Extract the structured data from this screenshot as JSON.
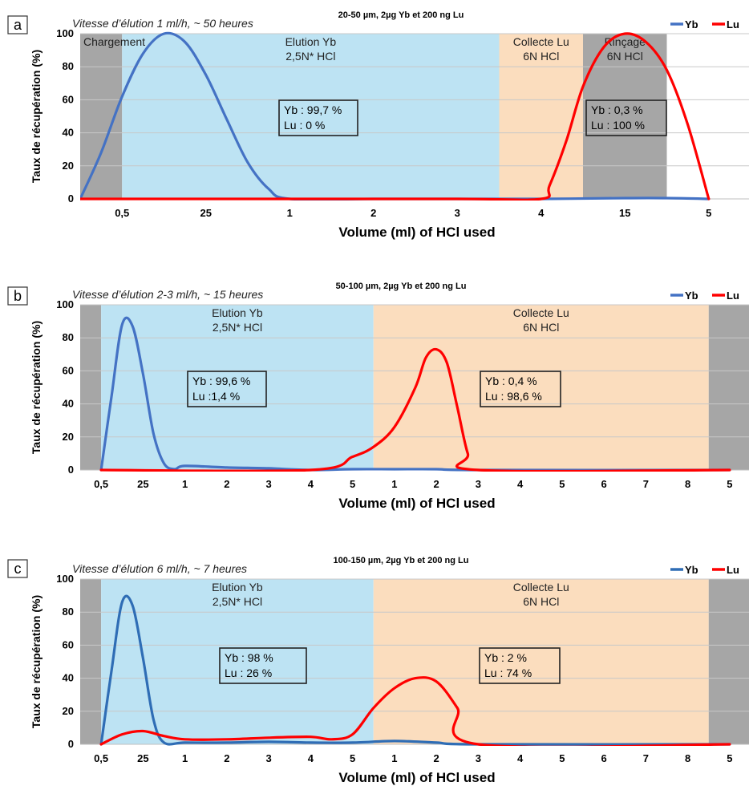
{
  "colors": {
    "yb": "#4472C4",
    "yb_dark": "#2F6DB5",
    "lu": "#FF0000",
    "gray": "#A6A6A6",
    "blue_region": "#BDE3F3",
    "peach_region": "#FBDDBE",
    "grid": "#C8C8C8"
  },
  "chart_data": [
    {
      "type": "line",
      "panel_label": "a",
      "title": "20-50 µm, 2µg Yb et 200 ng Lu",
      "subtitle": "Vitesse d’élution 1 ml/h, ~ 50 heures",
      "xlabel": "Volume (ml) of HCl used",
      "ylabel": "Taux de récupération (%)",
      "ylim": [
        0,
        100
      ],
      "yticks": [
        0,
        20,
        40,
        60,
        80,
        100
      ],
      "grid": true,
      "legend_position": "top-right",
      "categories": [
        "0,5",
        "25",
        "1",
        "2",
        "3",
        "4",
        "15",
        "5"
      ],
      "regions": [
        {
          "kind": "gray",
          "from": -0.5,
          "to": 0.0,
          "labels": [
            "Chargement"
          ]
        },
        {
          "kind": "blue",
          "from": 0.0,
          "to": 4.5,
          "labels": [
            "Elution Yb",
            "2,5N* HCl"
          ]
        },
        {
          "kind": "peach",
          "from": 4.5,
          "to": 5.5,
          "labels": [
            "Collecte Lu",
            "6N HCl"
          ]
        },
        {
          "kind": "gray",
          "from": 5.5,
          "to": 6.5,
          "labels": [
            "Rinçage",
            "6N HCl"
          ]
        }
      ],
      "series": [
        {
          "name": "Yb",
          "points": [
            [
              -0.5,
              0
            ],
            [
              -0.25,
              28
            ],
            [
              0,
              62
            ],
            [
              0.25,
              88
            ],
            [
              0.5,
              100
            ],
            [
              0.75,
              95
            ],
            [
              1,
              75
            ],
            [
              1.25,
              48
            ],
            [
              1.5,
              22
            ],
            [
              1.75,
              6
            ],
            [
              2,
              0
            ],
            [
              3,
              0
            ],
            [
              4,
              0
            ],
            [
              5,
              0
            ],
            [
              6,
              0.5
            ],
            [
              6.5,
              0.5
            ],
            [
              7,
              0
            ]
          ]
        },
        {
          "name": "Lu",
          "points": [
            [
              -0.5,
              0
            ],
            [
              1,
              0
            ],
            [
              4,
              0
            ],
            [
              5,
              0
            ],
            [
              5.1,
              8
            ],
            [
              5.3,
              35
            ],
            [
              5.5,
              68
            ],
            [
              5.75,
              92
            ],
            [
              6,
              100
            ],
            [
              6.25,
              95
            ],
            [
              6.5,
              78
            ],
            [
              6.75,
              45
            ],
            [
              7,
              0
            ]
          ]
        }
      ],
      "annotations": [
        {
          "lines": [
            "Yb : 99,7 %",
            "Lu : 0 %"
          ]
        },
        {
          "lines": [
            "Yb : 0,3 %",
            "Lu : 100 %"
          ]
        }
      ]
    },
    {
      "type": "line",
      "panel_label": "b",
      "title": "50-100 µm, 2µg Yb et 200 ng Lu",
      "subtitle": "Vitesse d’élution 2-3 ml/h, ~ 15 heures",
      "xlabel": "Volume (ml) of HCl used",
      "ylabel": "Taux de récupération (%)",
      "ylim": [
        0,
        100
      ],
      "yticks": [
        0,
        20,
        40,
        60,
        80,
        100
      ],
      "grid": true,
      "legend_position": "top-right",
      "categories": [
        "0,5",
        "25",
        "1",
        "2",
        "3",
        "4",
        "5",
        "1",
        "2",
        "3",
        "4",
        "5",
        "6",
        "7",
        "8",
        "5"
      ],
      "regions": [
        {
          "kind": "gray",
          "from": -0.5,
          "to": 0.0,
          "labels": []
        },
        {
          "kind": "blue",
          "from": 0.0,
          "to": 6.5,
          "labels": [
            "Elution Yb",
            "2,5N* HCl"
          ]
        },
        {
          "kind": "peach",
          "from": 6.5,
          "to": 14.5,
          "labels": [
            "Collecte Lu",
            "6N HCl"
          ]
        },
        {
          "kind": "gray",
          "from": 14.5,
          "to": 15.5,
          "labels": []
        }
      ],
      "series": [
        {
          "name": "Yb",
          "points": [
            [
              0,
              0
            ],
            [
              0.25,
              45
            ],
            [
              0.5,
              88
            ],
            [
              0.75,
              87
            ],
            [
              1,
              58
            ],
            [
              1.25,
              22
            ],
            [
              1.5,
              4
            ],
            [
              1.75,
              0.5
            ],
            [
              2,
              2.5
            ],
            [
              3,
              1.5
            ],
            [
              4,
              1
            ],
            [
              5,
              0
            ],
            [
              6,
              0.5
            ],
            [
              7,
              0.5
            ],
            [
              8,
              0.5
            ],
            [
              9,
              0
            ],
            [
              15,
              0
            ]
          ]
        },
        {
          "name": "Lu",
          "points": [
            [
              0,
              0
            ],
            [
              5,
              0
            ],
            [
              6,
              8
            ],
            [
              6.5,
              14
            ],
            [
              7,
              26
            ],
            [
              7.5,
              50
            ],
            [
              7.75,
              68
            ],
            [
              8,
              73
            ],
            [
              8.25,
              65
            ],
            [
              8.5,
              38
            ],
            [
              8.75,
              10
            ],
            [
              9,
              0
            ],
            [
              15,
              0
            ]
          ]
        }
      ],
      "annotations": [
        {
          "lines": [
            "Yb : 99,6 %",
            "Lu :1,4 %"
          ]
        },
        {
          "lines": [
            "Yb : 0,4 %",
            "Lu : 98,6 %"
          ]
        }
      ]
    },
    {
      "type": "line",
      "panel_label": "c",
      "title": "100-150 µm, 2µg Yb et 200 ng Lu",
      "subtitle": "Vitesse d’élution 6 ml/h, ~ 7 heures",
      "xlabel": "Volume (ml) of HCl used",
      "ylabel": "Taux de récupération (%)",
      "ylim": [
        0,
        100
      ],
      "yticks": [
        0,
        20,
        40,
        60,
        80,
        100
      ],
      "grid": true,
      "legend_position": "top-right",
      "categories": [
        "0,5",
        "25",
        "1",
        "2",
        "3",
        "4",
        "5",
        "1",
        "2",
        "3",
        "4",
        "5",
        "6",
        "7",
        "8",
        "5"
      ],
      "regions": [
        {
          "kind": "gray",
          "from": -0.5,
          "to": 0.0,
          "labels": []
        },
        {
          "kind": "blue",
          "from": 0.0,
          "to": 6.5,
          "labels": [
            "Elution Yb",
            "2,5N* HCl"
          ]
        },
        {
          "kind": "peach",
          "from": 6.5,
          "to": 14.5,
          "labels": [
            "Collecte Lu",
            "6N HCl"
          ]
        },
        {
          "kind": "gray",
          "from": 14.5,
          "to": 15.5,
          "labels": []
        }
      ],
      "series": [
        {
          "name": "Yb",
          "points": [
            [
              0,
              0
            ],
            [
              0.25,
              45
            ],
            [
              0.5,
              86
            ],
            [
              0.75,
              84
            ],
            [
              1,
              52
            ],
            [
              1.25,
              15
            ],
            [
              1.5,
              1
            ],
            [
              2,
              1
            ],
            [
              3,
              1
            ],
            [
              4,
              1.5
            ],
            [
              5,
              1
            ],
            [
              6,
              1
            ],
            [
              7,
              2
            ],
            [
              8,
              1
            ],
            [
              9,
              0
            ],
            [
              15,
              0
            ]
          ]
        },
        {
          "name": "Lu",
          "points": [
            [
              0,
              0
            ],
            [
              0.5,
              6
            ],
            [
              1,
              8
            ],
            [
              1.5,
              5
            ],
            [
              2,
              3
            ],
            [
              3,
              3
            ],
            [
              4,
              4
            ],
            [
              5,
              4.5
            ],
            [
              5.5,
              3
            ],
            [
              6,
              6
            ],
            [
              6.5,
              22
            ],
            [
              7,
              34
            ],
            [
              7.5,
              40
            ],
            [
              8,
              38
            ],
            [
              8.5,
              22
            ],
            [
              9,
              0
            ],
            [
              15,
              0
            ]
          ]
        }
      ],
      "annotations": [
        {
          "lines": [
            "Yb : 98 %",
            "Lu : 26 %"
          ]
        },
        {
          "lines": [
            "Yb : 2 %",
            "Lu : 74 %"
          ]
        }
      ]
    }
  ]
}
